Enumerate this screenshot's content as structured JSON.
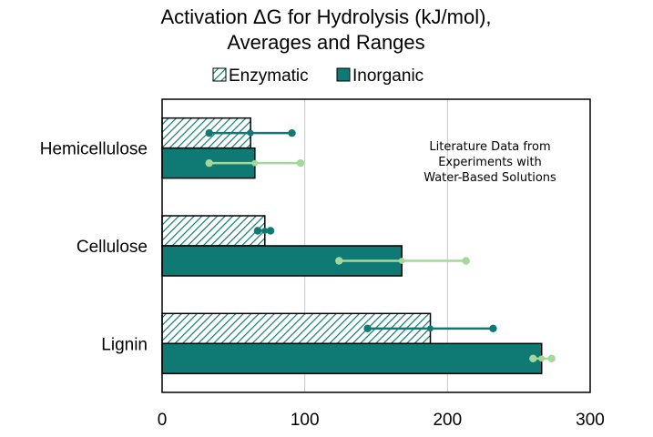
{
  "chart_data": {
    "type": "bar",
    "orientation": "horizontal",
    "title": [
      "Activation ΔG for Hydrolysis (kJ/mol),",
      "Averages and Ranges"
    ],
    "categories": [
      "Hemicellulose",
      "Cellulose",
      "Lignin"
    ],
    "series": [
      {
        "name": "Enzymatic",
        "values": [
          62,
          72,
          188
        ],
        "range_low": [
          33,
          67,
          144
        ],
        "range_high": [
          91,
          76,
          232
        ],
        "color": "#0e7a73",
        "pattern": "diagonal-hatch",
        "range_color": "#0e7a73"
      },
      {
        "name": "Inorganic",
        "values": [
          65,
          168,
          266
        ],
        "range_low": [
          33,
          124,
          260
        ],
        "range_high": [
          97,
          213,
          273
        ],
        "color": "#0e7a73",
        "pattern": "solid",
        "range_color": "#a6d79a"
      }
    ],
    "xlim": [
      0,
      300
    ],
    "xticks": [
      "0",
      "100",
      "200",
      "300"
    ],
    "xtick_values": [
      0,
      100,
      200,
      300
    ],
    "grid": "vertical",
    "legend_position": "top",
    "annotation": [
      "Literature Data from",
      "Experiments with",
      "Water-Based Solutions"
    ],
    "annotation_position": "top-right"
  }
}
